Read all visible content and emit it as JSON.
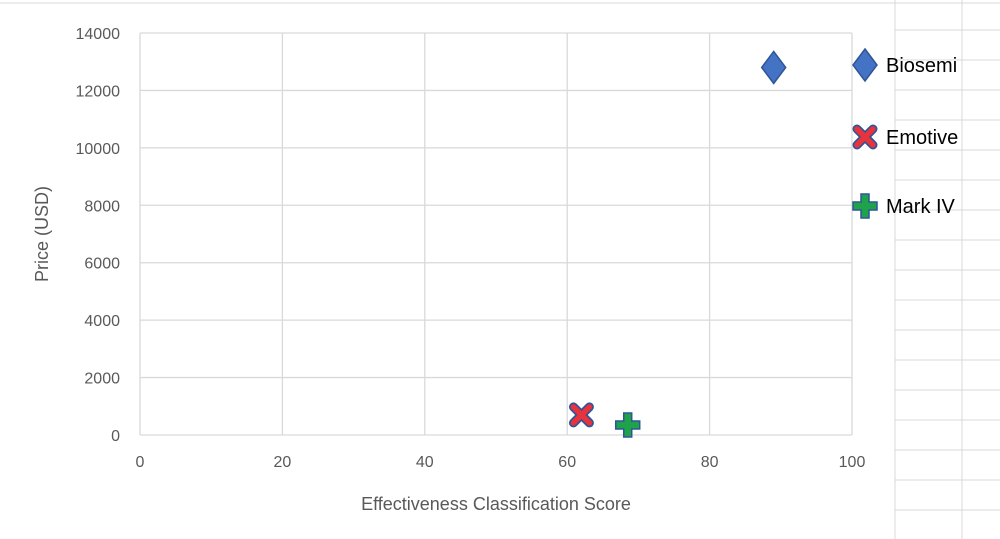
{
  "chart_data": {
    "type": "scatter",
    "title": "",
    "xlabel": "Effectiveness Classification Score",
    "ylabel": "Price (USD)",
    "xlim": [
      0,
      100
    ],
    "ylim": [
      0,
      14000
    ],
    "x_ticks": [
      0,
      20,
      40,
      60,
      80,
      100
    ],
    "y_ticks": [
      0,
      2000,
      4000,
      6000,
      8000,
      10000,
      12000,
      14000
    ],
    "grid": true,
    "legend_position": "right",
    "series": [
      {
        "name": "Biosemi",
        "marker": "diamond",
        "color": "#4472C4",
        "points": [
          {
            "x": 89,
            "y": 12800
          }
        ]
      },
      {
        "name": "Emotive",
        "marker": "x",
        "color": "#E8323C",
        "points": [
          {
            "x": 62,
            "y": 700
          }
        ]
      },
      {
        "name": "Mark IV",
        "marker": "plus",
        "color": "#1FA34A",
        "points": [
          {
            "x": 68.5,
            "y": 350
          }
        ]
      }
    ]
  }
}
